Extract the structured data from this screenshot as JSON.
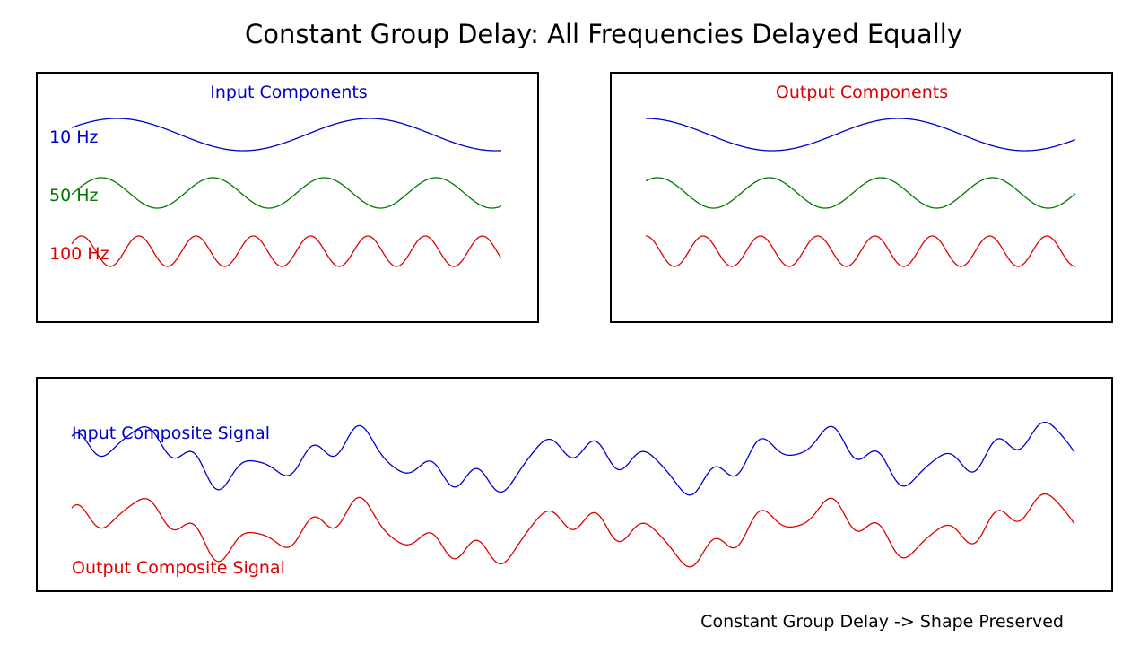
{
  "title": "Constant Group Delay: All Frequencies Delayed Equally",
  "caption": "Constant Group Delay -> Shape Preserved",
  "colors": {
    "blue": "#0000cc",
    "green": "#007700",
    "red": "#dd0000",
    "frame": "#000000"
  },
  "input_panel": {
    "title": "Input Components",
    "components": [
      {
        "label": "10 Hz",
        "frequency": 10,
        "color": "#0000cc"
      },
      {
        "label": "50 Hz",
        "frequency": 50,
        "color": "#007700"
      },
      {
        "label": "100 Hz",
        "frequency": 100,
        "color": "#dd0000"
      }
    ]
  },
  "output_panel": {
    "title": "Output Components",
    "components": [
      {
        "frequency": 10,
        "color": "#0000cc"
      },
      {
        "frequency": 50,
        "color": "#007700"
      },
      {
        "frequency": 100,
        "color": "#dd0000"
      }
    ]
  },
  "composite_panel": {
    "input_label": "Input Composite Signal",
    "output_label": "Output Composite Signal",
    "input_color": "#0000cc",
    "output_color": "#dd0000"
  }
}
